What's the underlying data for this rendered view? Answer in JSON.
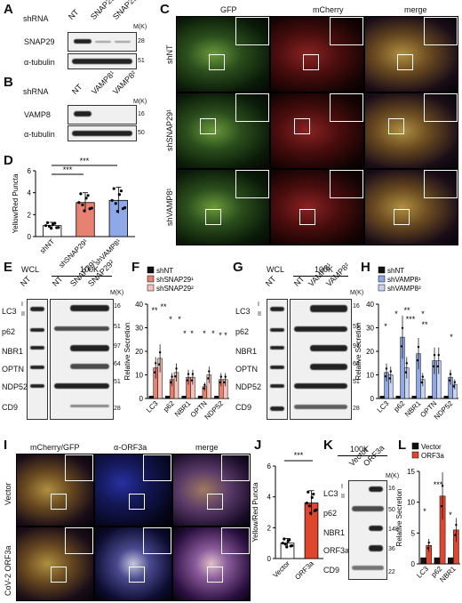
{
  "panels": {
    "A": {
      "letter": "A",
      "shrna": "shRNA",
      "lanes": [
        "NT",
        "SNAP29¹",
        "SNAP29²"
      ],
      "rows": [
        "SNAP29",
        "α-tubulin"
      ],
      "mw": [
        "M(K)",
        "28",
        "51"
      ]
    },
    "B": {
      "letter": "B",
      "shrna": "shRNA",
      "lanes": [
        "NT",
        "VAMP8¹",
        "VAMP8²"
      ],
      "rows": [
        "VAMP8",
        "α-tubulin"
      ],
      "mw": [
        "M(K)",
        "16",
        "50"
      ]
    },
    "C": {
      "letter": "C",
      "cols": [
        "GFP",
        "mCherry",
        "merge"
      ],
      "rows": [
        "shNT",
        "shSNAP29¹",
        "shVAMP8¹"
      ]
    },
    "D": {
      "letter": "D",
      "sig": [
        "***",
        "***"
      ]
    },
    "E": {
      "letter": "E",
      "top": [
        "WCL",
        "100K"
      ],
      "lanes": [
        "NT",
        "NT",
        "SNAP29¹",
        "SNAP29²"
      ],
      "rows": [
        "LC3",
        "p62",
        "NBR1",
        "OPTN",
        "NDP52",
        "CD9"
      ],
      "lc3": [
        "I",
        "II"
      ],
      "mw": [
        "M(K)",
        "16",
        "51",
        "97",
        "64",
        "51",
        "28"
      ]
    },
    "F": {
      "letter": "F",
      "sig": [
        "**",
        "**",
        "*",
        "*",
        "*",
        "*",
        "*",
        "*",
        "*",
        "*"
      ]
    },
    "G": {
      "letter": "G",
      "top": [
        "WCL",
        "100K"
      ],
      "lanes": [
        "NT",
        "NT",
        "VAMP8¹",
        "VAMP8²"
      ],
      "rows": [
        "LC3",
        "p62",
        "NBR1",
        "OPTN",
        "NDP52",
        "CD9"
      ],
      "lc3": [
        "I",
        "II"
      ],
      "mw": [
        "M(K)",
        "16",
        "51",
        "97",
        "64",
        "51",
        "28"
      ]
    },
    "H": {
      "letter": "H",
      "sig": [
        "*",
        "*",
        "**",
        "***",
        "*",
        "**",
        "*"
      ]
    },
    "I": {
      "letter": "I",
      "cols": [
        "mCherry/GFP",
        "α-ORF3a",
        "merge"
      ],
      "rows": [
        "Vector",
        "CoV-2 ORF3a"
      ]
    },
    "J": {
      "letter": "J",
      "sig": "***"
    },
    "K": {
      "letter": "K",
      "top": "100K",
      "lanes": [
        "Vector",
        "ORF3a"
      ],
      "rows": [
        "LC3",
        "p62",
        "NBR1",
        "ORF3a",
        "CD9"
      ],
      "lc3": [
        "I",
        "II"
      ],
      "mw": [
        "M(K)",
        "16",
        "50",
        "148",
        "36",
        "22"
      ]
    },
    "L": {
      "letter": "L",
      "sig": [
        "*",
        "***",
        "*"
      ]
    }
  },
  "colors": {
    "black": "#111111",
    "salmon": "#e8816f",
    "blue": "#8fa8e8",
    "red": "#e0452e"
  },
  "chart_data": [
    {
      "type": "bar",
      "panel": "D",
      "categories": [
        "shNT",
        "shSNAP29¹",
        "shVAMP8¹"
      ],
      "values": [
        1.0,
        3.1,
        3.3
      ],
      "errors": [
        0.3,
        0.9,
        1.2
      ],
      "ylabel": "Yellow/Red Puncta",
      "ylim": [
        0,
        6
      ],
      "yticks": [
        "0",
        "2",
        "4",
        "6"
      ],
      "colors": [
        "#ffffff",
        "#e8816f",
        "#8fa8e8"
      ]
    },
    {
      "type": "bar",
      "panel": "F",
      "categories": [
        "LC3",
        "p62",
        "NBR1",
        "OPTN",
        "NDP52"
      ],
      "series": [
        {
          "name": "shNT",
          "values": [
            1,
            1,
            1,
            1,
            1
          ],
          "color": "#111111"
        },
        {
          "name": "shSNAP29¹",
          "values": [
            13,
            8,
            9,
            5,
            8
          ],
          "color": "#e8816f"
        },
        {
          "name": "shSNAP29²",
          "values": [
            17,
            11,
            9,
            10,
            8
          ],
          "color": "#f4c4bb"
        }
      ],
      "ylabel": "Relative Secretion",
      "ylim": [
        0,
        40
      ],
      "yticks": [
        "0",
        "10",
        "20",
        "30",
        "40"
      ]
    },
    {
      "type": "bar",
      "panel": "H",
      "categories": [
        "LC3",
        "p62",
        "NBR1",
        "OPTN",
        "NDP52"
      ],
      "series": [
        {
          "name": "shNT",
          "values": [
            1,
            1,
            1,
            1,
            1
          ],
          "color": "#111111"
        },
        {
          "name": "shVAMP8¹",
          "values": [
            11,
            26,
            19,
            16,
            9
          ],
          "color": "#8fa8e8"
        },
        {
          "name": "shVAMP8²",
          "values": [
            10,
            13,
            8,
            16,
            6
          ],
          "color": "#c8d4f2"
        }
      ],
      "ylabel": "Relative Secretion",
      "ylim": [
        0,
        40
      ],
      "yticks": [
        "0",
        "10",
        "20",
        "30",
        "40"
      ]
    },
    {
      "type": "bar",
      "panel": "J",
      "categories": [
        "Vector",
        "ORF3a"
      ],
      "values": [
        1.0,
        3.6
      ],
      "errors": [
        0.3,
        0.8
      ],
      "ylabel": "Yellow/Red Puncta",
      "ylim": [
        0,
        6
      ],
      "yticks": [
        "0",
        "2",
        "4",
        "6"
      ],
      "colors": [
        "#ffffff",
        "#e0452e"
      ]
    },
    {
      "type": "bar",
      "panel": "L",
      "categories": [
        "LC3",
        "p62",
        "NBR1"
      ],
      "series": [
        {
          "name": "Vector",
          "values": [
            1,
            1,
            1
          ],
          "color": "#111111"
        },
        {
          "name": "ORF3a",
          "values": [
            3,
            11,
            5.5
          ],
          "color": "#e0452e"
        }
      ],
      "ylabel": "Relative Secretion",
      "ylim": [
        0,
        15
      ],
      "yticks": [
        "0",
        "5",
        "10",
        "15"
      ]
    }
  ]
}
